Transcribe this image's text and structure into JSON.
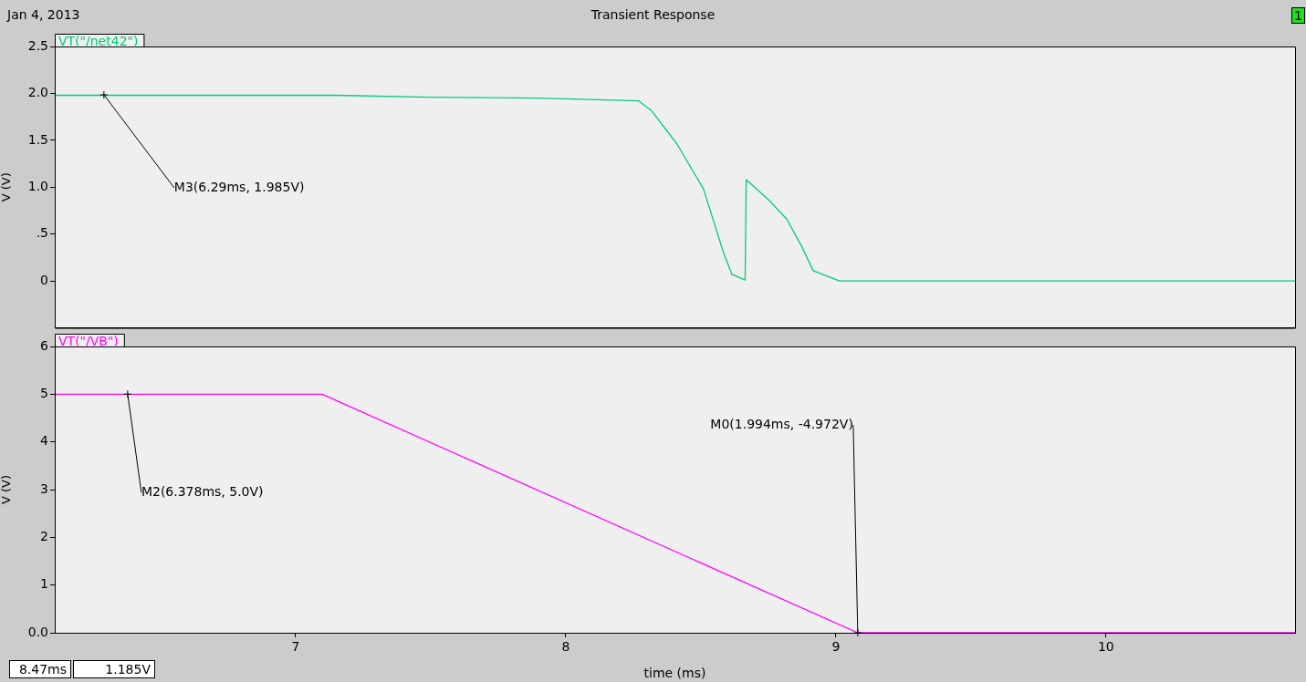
{
  "chart_data": [
    {
      "type": "line",
      "title": "Transient Response",
      "ylabel": "V (V)",
      "xlim": [
        6.108,
        10.7
      ],
      "ylim": [
        -0.5,
        2.5
      ],
      "yticks": [
        0,
        {
          "value": 0.5,
          "label": ".5"
        },
        {
          "value": 1,
          "label": "1.0"
        },
        {
          "value": 1.5,
          "label": "1.5"
        },
        {
          "value": 2,
          "label": "2.0"
        },
        {
          "value": 2.5,
          "label": "2.5"
        }
      ],
      "tick_labels": "y",
      "legend": "top left",
      "marker": "none",
      "grid": false,
      "series": [
        {
          "name": "VT(\"/net42\")",
          "color": "#00cc77",
          "x": [
            6.108,
            7.149,
            7.493,
            7.909,
            8.27,
            8.316,
            8.412,
            8.51,
            8.583,
            8.615,
            8.664,
            8.668,
            8.753,
            8.818,
            8.875,
            8.916,
            9.013,
            10.7
          ],
          "values": [
            1.98,
            1.98,
            1.96,
            1.95,
            1.92,
            1.82,
            1.46,
            0.98,
            0.31,
            0.07,
            0.01,
            1.08,
            0.86,
            0.66,
            0.36,
            0.11,
            0,
            0
          ]
        }
      ],
      "annotations": [
        "Jan 4, 2013",
        "1",
        {
          "text": "M3(6.29ms, 1.985V)",
          "x": 6.29,
          "y": 1.985
        }
      ]
    },
    {
      "type": "line",
      "xlabel": "time (ms)",
      "ylabel": "V (V)",
      "xlim": [
        6.108,
        10.7
      ],
      "ylim": [
        0,
        6
      ],
      "xticks": [
        7,
        8,
        9,
        10
      ],
      "yticks": [
        {
          "value": 0,
          "label": "0.0"
        },
        1,
        2,
        3,
        4,
        5,
        6
      ],
      "legend": "top left",
      "marker": "none",
      "grid": false,
      "series": [
        {
          "name": "VT(\"/VB\")",
          "color": "#ff00ff",
          "x": [
            6.108,
            7.098,
            9.081,
            10.7
          ],
          "values": [
            5,
            5,
            0,
            0
          ]
        }
      ],
      "annotations": [
        {
          "text": "M2(6.378ms, 5.0V)",
          "x": 6.378,
          "y": 5
        },
        {
          "text": "M0(1.994ms, -4.972V)",
          "x": 9.081,
          "y": 0
        },
        "8.47ms",
        "1.185V"
      ]
    }
  ]
}
